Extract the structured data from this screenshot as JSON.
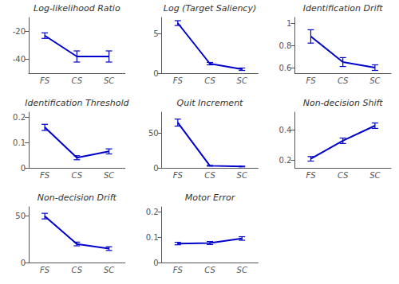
{
  "chart_data": [
    {
      "type": "line",
      "title": "Log-likelihood Ratio",
      "categories": [
        "FS",
        "CS",
        "SC"
      ],
      "values": [
        -23,
        -38,
        -38
      ],
      "errors": [
        2,
        4,
        4
      ],
      "color": "#0000CC",
      "ylim": [
        -50,
        -10
      ],
      "yticks": [
        -40,
        -20
      ],
      "grid": false
    },
    {
      "type": "line",
      "title": "Log (Target Saliency)",
      "categories": [
        "FS",
        "CS",
        "SC"
      ],
      "values": [
        6.3,
        1.2,
        0.5
      ],
      "errors": [
        0.3,
        0.15,
        0.15
      ],
      "color": "#0000CC",
      "ylim": [
        0,
        7
      ],
      "yticks": [
        0,
        5
      ],
      "grid": false
    },
    {
      "type": "line",
      "title": "Identification Drift",
      "categories": [
        "FS",
        "CS",
        "SC"
      ],
      "values": [
        0.88,
        0.65,
        0.6
      ],
      "errors": [
        0.06,
        0.04,
        0.025
      ],
      "color": "#0000CC",
      "ylim": [
        0.55,
        1.05
      ],
      "yticks": [
        0.6,
        0.8,
        1
      ],
      "grid": false
    },
    {
      "type": "line",
      "title": "Identification Threshold",
      "categories": [
        "FS",
        "CS",
        "SC"
      ],
      "values": [
        0.16,
        0.04,
        0.065
      ],
      "errors": [
        0.012,
        0.008,
        0.01
      ],
      "color": "#0000CC",
      "ylim": [
        0,
        0.22
      ],
      "yticks": [
        0,
        0.1,
        0.2
      ],
      "grid": false
    },
    {
      "type": "line",
      "title": "Quit Increment",
      "categories": [
        "FS",
        "CS",
        "SC"
      ],
      "values": [
        65,
        3,
        2
      ],
      "errors": [
        5,
        0.5,
        0.5
      ],
      "color": "#0000CC",
      "ylim": [
        0,
        80
      ],
      "yticks": [
        0,
        50
      ],
      "grid": false
    },
    {
      "type": "line",
      "title": "Non-decision Shift",
      "categories": [
        "FS",
        "CS",
        "SC"
      ],
      "values": [
        0.21,
        0.33,
        0.43
      ],
      "errors": [
        0.015,
        0.018,
        0.018
      ],
      "color": "#0000CC",
      "ylim": [
        0.15,
        0.52
      ],
      "yticks": [
        0.2,
        0.4
      ],
      "grid": false
    },
    {
      "type": "line",
      "title": "Non-decision Drift",
      "categories": [
        "FS",
        "CS",
        "SC"
      ],
      "values": [
        50,
        20,
        15
      ],
      "errors": [
        3,
        2,
        2
      ],
      "color": "#0000CC",
      "ylim": [
        0,
        60
      ],
      "yticks": [
        0,
        50
      ],
      "grid": false
    },
    {
      "type": "line",
      "title": "Motor Error",
      "categories": [
        "FS",
        "CS",
        "SC"
      ],
      "values": [
        0.075,
        0.077,
        0.095
      ],
      "errors": [
        0.005,
        0.006,
        0.007
      ],
      "color": "#0000CC",
      "ylim": [
        0,
        0.22
      ],
      "yticks": [
        0,
        0.1,
        0.2
      ],
      "grid": false
    }
  ]
}
